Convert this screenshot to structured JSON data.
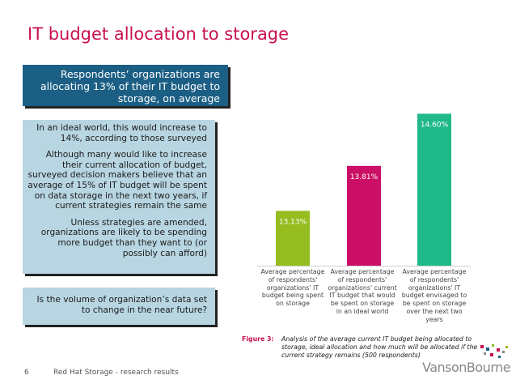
{
  "page": {
    "title": "IT budget allocation to storage",
    "page_number": "6",
    "footer": "Red Hat Storage - research results",
    "logo": "VansonBourne"
  },
  "sidebar": {
    "headline": "Respondents’ organizations are allocating 13% of their IT budget to storage, on average",
    "paragraphs": [
      "In an ideal world, this would increase to 14%, according to those surveyed",
      "Although many would like to increase their current allocation of budget, surveyed decision makers believe that an average of 15% of IT budget will be spent on data storage in the next two years, if current strategies remain the same",
      "Unless strategies are amended, organizations are likely to be spending more budget than they want to (or possibly can afford)"
    ],
    "question": "Is the volume of organization’s data set to change in the near future?"
  },
  "figure": {
    "label": "Figure 3:",
    "caption": "Analysis of the average current IT budget being allocated to storage, ideal allocation and how much will be allocated if the current strategy remains (500 respondents)"
  },
  "colors": {
    "title": "#c8104e",
    "headline_box": "#1c5f85",
    "text_box": "#b8d6e2",
    "bars": [
      "#95bd1f",
      "#cc0f66",
      "#1fb98a"
    ]
  },
  "chart_data": {
    "type": "bar",
    "categories": [
      "Average percentage of respondents' organizations' IT budget being spent on storage",
      "Average percentage of respondents' organizations' current IT budget that would be spent on storage in an ideal world",
      "Average percentage of respondents' organizations' IT budget envisaged to be spent on storage over the next two years"
    ],
    "values": [
      13.13,
      13.81,
      14.6
    ],
    "data_labels": [
      "13.13%",
      "13.81%",
      "14.60%"
    ],
    "ylim": [
      12.3,
      14.85
    ],
    "title": "",
    "xlabel": "",
    "ylabel": ""
  }
}
